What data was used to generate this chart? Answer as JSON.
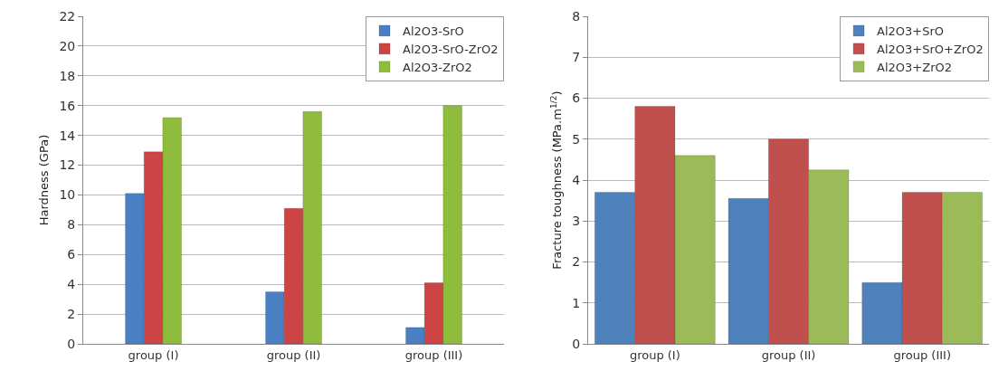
{
  "chart_data": [
    {
      "type": "bar",
      "ylabel": "Hardness (GPa)",
      "categories": [
        "group (I)",
        "group (II)",
        "group (III)"
      ],
      "series": [
        {
          "name": "Al2O3-SrO",
          "color": "#4a7fc4",
          "values": [
            10.1,
            3.5,
            1.1
          ]
        },
        {
          "name": "Al2O3-SrO-ZrO2",
          "color": "#cc4444",
          "values": [
            12.9,
            9.1,
            4.1
          ]
        },
        {
          "name": "Al2O3-ZrO2",
          "color": "#8fbc3c",
          "values": [
            15.2,
            15.6,
            16.0
          ]
        }
      ],
      "ylim": [
        0,
        22
      ],
      "yticks": [
        0,
        2,
        4,
        6,
        8,
        10,
        12,
        14,
        16,
        18,
        20,
        22
      ],
      "grid": "y",
      "legend": "top right"
    },
    {
      "type": "bar",
      "ylabel": "Fracture toughness (MPa.m$^{1/2}$)",
      "categories": [
        "group (I)",
        "group (II)",
        "group (III)"
      ],
      "series": [
        {
          "name": "Al2O3+SrO",
          "color": "#4f81bd",
          "values": [
            3.7,
            3.55,
            1.5
          ]
        },
        {
          "name": "Al2O3+SrO+ZrO2",
          "color": "#c0504d",
          "values": [
            5.8,
            5.0,
            3.7
          ]
        },
        {
          "name": "Al2O3+ZrO2",
          "color": "#9bbb59",
          "values": [
            4.6,
            4.25,
            3.7
          ]
        }
      ],
      "ylim": [
        0,
        8
      ],
      "yticks": [
        0,
        1,
        2,
        3,
        4,
        5,
        6,
        7,
        8
      ],
      "grid": "y",
      "legend": "top right"
    }
  ]
}
